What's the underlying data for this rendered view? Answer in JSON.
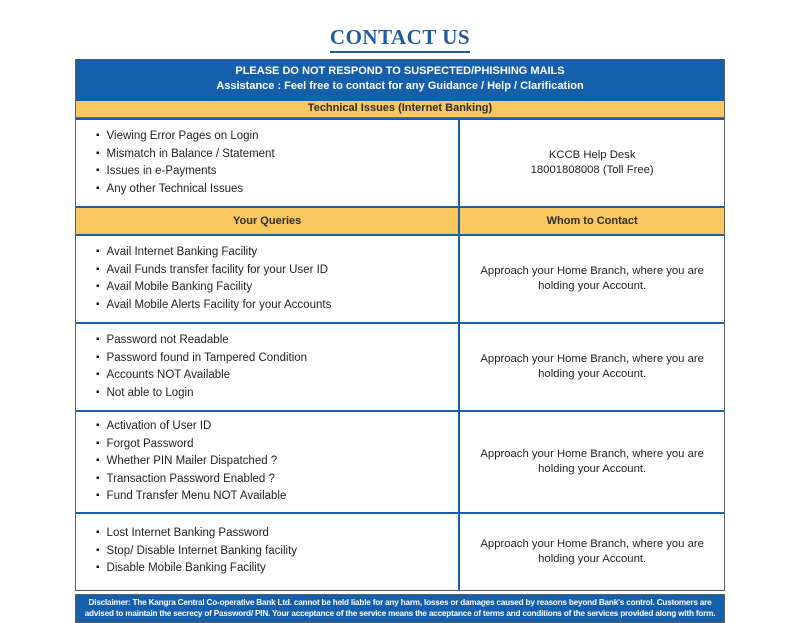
{
  "page": {
    "title": "CONTACT US"
  },
  "colors": {
    "blue": "#165FAB",
    "yellow": "#F9C75F",
    "title_blue": "#1E5C9E"
  },
  "banner": {
    "line1": "PLEASE DO NOT RESPOND TO SUSPECTED/PHISHING MAILS",
    "line2": "Assistance : Feel free to contact for any Guidance / Help / Clarification"
  },
  "technical": {
    "header": "Technical Issues (Internet Banking)",
    "queries": [
      "Viewing Error Pages on Login",
      "Mismatch in Balance / Statement",
      "Issues in e-Payments",
      "Any other Technical Issues"
    ],
    "contact_line1": "KCCB Help Desk",
    "contact_line2": "18001808008 (Toll Free)"
  },
  "columns": {
    "queries": "Your Queries",
    "contact": "Whom to Contact"
  },
  "rows": [
    {
      "queries": [
        "Avail Internet Banking Facility",
        "Avail Funds transfer facility for your User ID",
        "Avail Mobile Banking Facility",
        "Avail Mobile Alerts Facility for your Accounts"
      ],
      "contact": "Approach your Home Branch, where you are holding your Account."
    },
    {
      "queries": [
        "Password not Readable",
        "Password found in Tampered Condition",
        "Accounts NOT Available",
        "Not able to Login"
      ],
      "contact": "Approach your Home Branch, where you are holding your Account."
    },
    {
      "queries": [
        "Activation of User ID",
        "Forgot Password",
        "Whether PIN Mailer Dispatched ?",
        "Transaction Password Enabled ?",
        "Fund Transfer Menu NOT Available"
      ],
      "contact": "Approach your Home Branch, where you are holding your Account."
    },
    {
      "queries": [
        "Lost Internet Banking Password",
        "Stop/ Disable Internet Banking facility",
        "Disable Mobile Banking Facility"
      ],
      "contact": "Approach your Home Branch, where you are holding your Account."
    }
  ],
  "disclaimer": "Disclaimer: The Kangra Central Co-operative Bank Ltd. cannot be held liable for any harm, losses or damages caused by reasons beyond Bank's control. Customers are advised to maintain the secrecy of Password/ PIN. Your acceptance of the service means the acceptance of terms and conditions of the services provided along with form."
}
